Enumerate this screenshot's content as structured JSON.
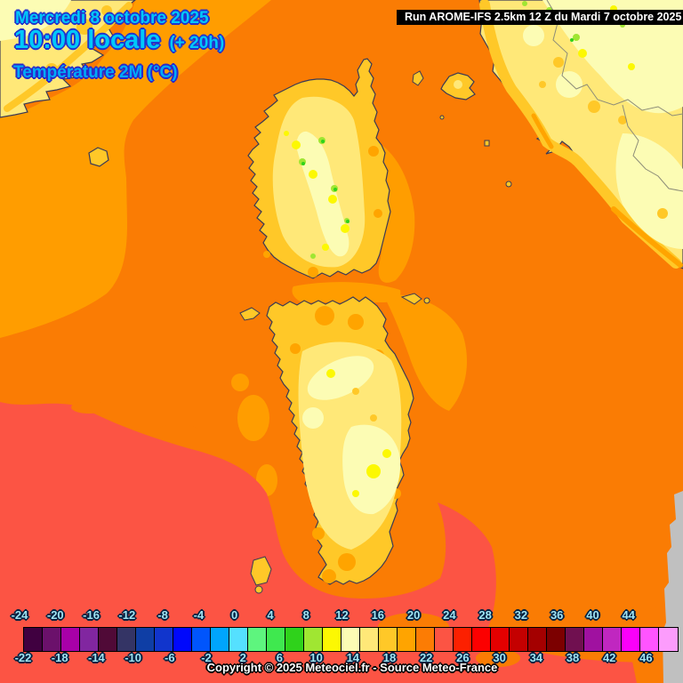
{
  "header": {
    "date_line": "Mercredi 8 octobre 2025",
    "time_line": "10:00 locale",
    "time_offset": "(+ 20h)",
    "parameter_line": "Température 2M (°C)",
    "run_info": "Run AROME-IFS 2.5km 12 Z du Mardi 7 octobre 2025"
  },
  "footer": {
    "copyright": "Copyright © 2025 Meteociel.fr - Source Meteo-France"
  },
  "legend": {
    "unit": "°C",
    "min": -24,
    "max": 46,
    "step": 2,
    "top_labels": [
      -24,
      -20,
      -16,
      -12,
      -8,
      -4,
      0,
      4,
      8,
      12,
      16,
      20,
      24,
      28,
      32,
      36,
      40,
      44
    ],
    "bottom_labels": [
      -22,
      -18,
      -14,
      -10,
      -6,
      -2,
      2,
      6,
      10,
      14,
      18,
      22,
      26,
      30,
      34,
      38,
      42,
      46
    ],
    "colors": [
      "#400040",
      "#6b116b",
      "#a800a8",
      "#8126a0",
      "#500a37",
      "#343465",
      "#0f3ea5",
      "#1135cc",
      "#0008fc",
      "#0055fc",
      "#00a5fc",
      "#55e0ff",
      "#5ef57e",
      "#3fe84f",
      "#2fd21b",
      "#a0e632",
      "#fcf802",
      "#fcfcb4",
      "#ffe878",
      "#ffc828",
      "#ffa400",
      "#fc7c04",
      "#fc5444",
      "#fc2000",
      "#fc0000",
      "#e40000",
      "#c40000",
      "#a40000",
      "#7c0000",
      "#701050",
      "#a011a0",
      "#c027c0",
      "#fa00fa",
      "#ff54ff",
      "#fc9cfc"
    ],
    "label_color": "#a0e4f2",
    "label_outline": "#002040"
  },
  "map_colors": {
    "sea_16_18": "#ff9d00",
    "sea_18_20": "#fa7c04",
    "sea_20_22": "#fc5444",
    "land_14_16": "#ffc828",
    "land_12_14": "#ffe878",
    "land_10_12": "#fcfcb4",
    "land_8_10": "#fcf802",
    "land_6_8": "#a0e632",
    "land_4_6": "#2fd21b",
    "no_data": "#c0c0c0",
    "coastline": "#3a3a55"
  }
}
